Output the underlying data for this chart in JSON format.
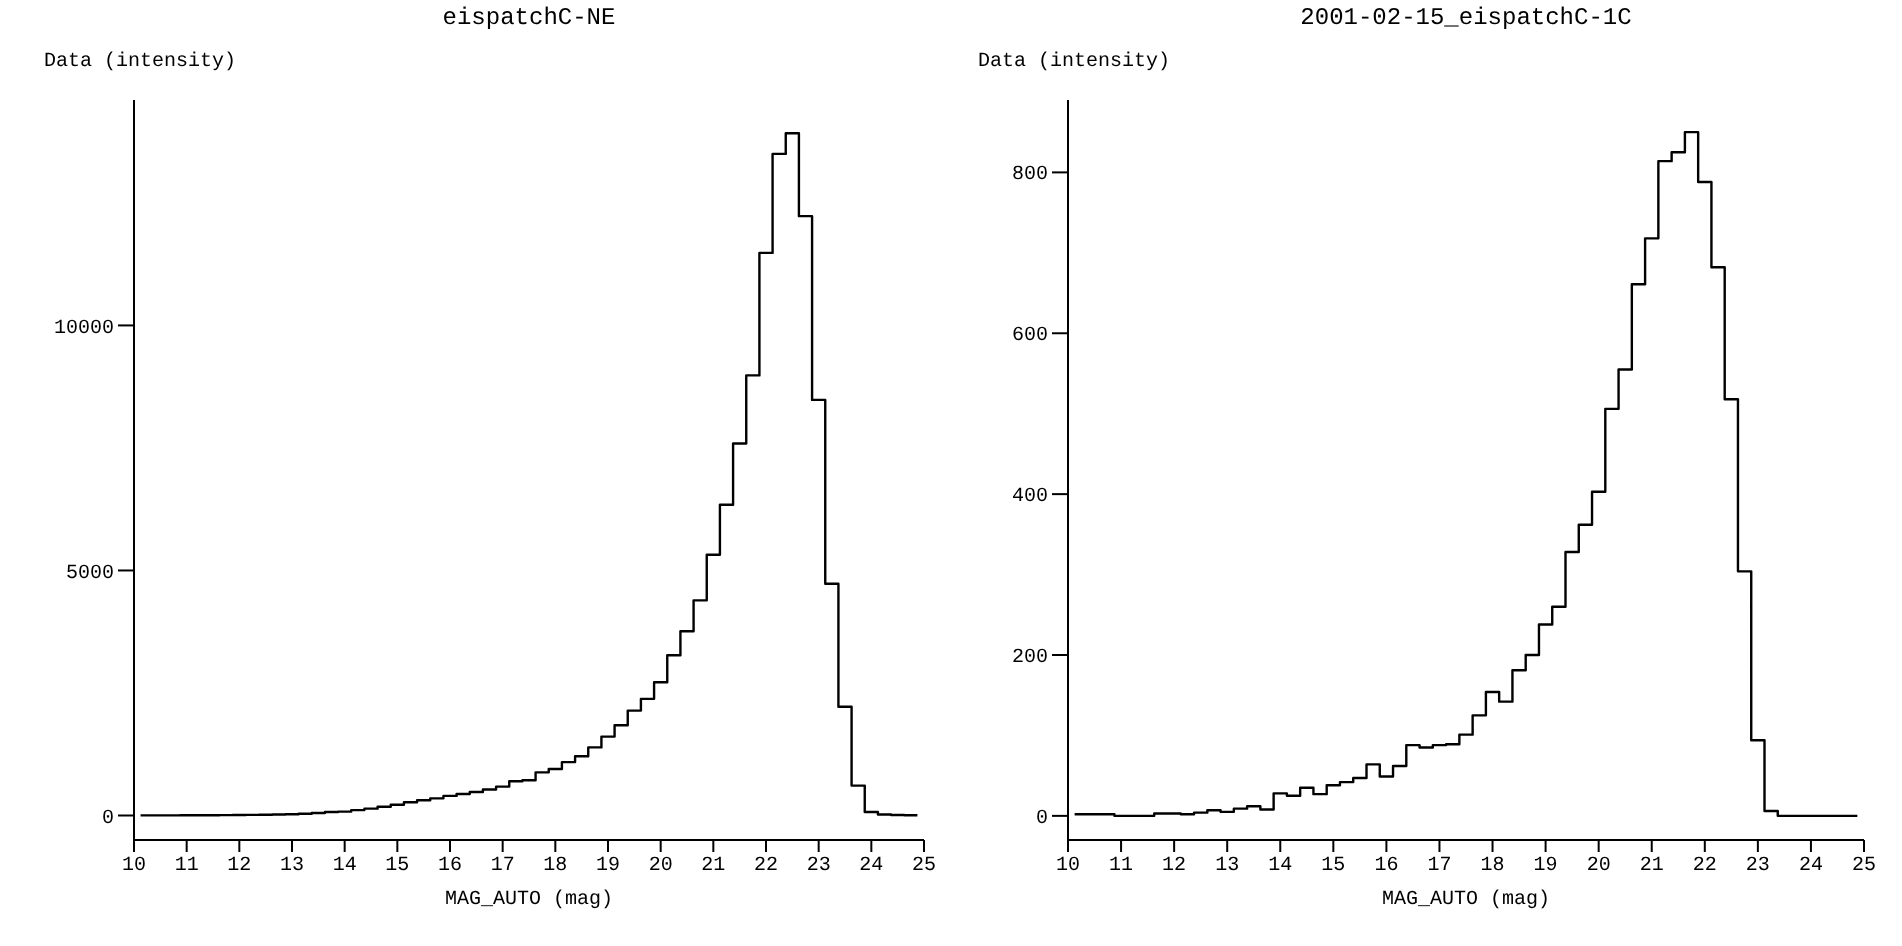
{
  "chart_data": [
    {
      "type": "histogram",
      "title": "eispatchC-NE",
      "xlabel": "MAG_AUTO (mag)",
      "ylabel": "Data (intensity)",
      "color": "#000000",
      "grid": false,
      "bins": [
        10.125,
        10.375,
        10.625,
        10.875,
        11.125,
        11.375,
        11.625,
        11.875,
        12.125,
        12.375,
        12.625,
        12.875,
        13.125,
        13.375,
        13.625,
        13.875,
        14.125,
        14.375,
        14.625,
        14.875,
        15.125,
        15.375,
        15.625,
        15.875,
        16.125,
        16.375,
        16.625,
        16.875,
        17.125,
        17.375,
        17.625,
        17.875,
        18.125,
        18.375,
        18.625,
        18.875,
        19.125,
        19.375,
        19.625,
        19.875,
        20.125,
        20.375,
        20.625,
        20.875,
        21.125,
        21.375,
        21.625,
        21.875,
        22.125,
        22.375,
        22.625,
        22.875,
        23.125,
        23.375,
        23.625,
        23.875,
        24.125,
        24.375,
        24.625,
        24.875
      ],
      "values": [
        2,
        2,
        3,
        4,
        5,
        6,
        8,
        10,
        12,
        15,
        20,
        25,
        35,
        50,
        70,
        80,
        110,
        140,
        180,
        220,
        270,
        310,
        350,
        400,
        440,
        480,
        530,
        590,
        700,
        720,
        880,
        950,
        1090,
        1210,
        1390,
        1610,
        1840,
        2140,
        2380,
        2720,
        3270,
        3760,
        4390,
        5320,
        6340,
        7590,
        8980,
        11480,
        13500,
        13920,
        12230,
        8480,
        4730,
        2220,
        610,
        70,
        20,
        10,
        5
      ],
      "xlim": [
        10,
        25
      ],
      "xticks": [
        10,
        11,
        12,
        13,
        14,
        15,
        16,
        17,
        18,
        19,
        20,
        21,
        22,
        23,
        24,
        25
      ],
      "ylim": [
        -500,
        14600
      ],
      "yticks": [
        0,
        5000,
        10000
      ]
    },
    {
      "type": "histogram",
      "title": "2001-02-15_eispatchC-1C",
      "xlabel": "MAG_AUTO (mag)",
      "ylabel": "Data (intensity)",
      "color": "#000000",
      "grid": false,
      "bins": [
        10.125,
        10.375,
        10.625,
        10.875,
        11.125,
        11.375,
        11.625,
        11.875,
        12.125,
        12.375,
        12.625,
        12.875,
        13.125,
        13.375,
        13.625,
        13.875,
        14.125,
        14.375,
        14.625,
        14.875,
        15.125,
        15.375,
        15.625,
        15.875,
        16.125,
        16.375,
        16.625,
        16.875,
        17.125,
        17.375,
        17.625,
        17.875,
        18.125,
        18.375,
        18.625,
        18.875,
        19.125,
        19.375,
        19.625,
        19.875,
        20.125,
        20.375,
        20.625,
        20.875,
        21.125,
        21.375,
        21.625,
        21.875,
        22.125,
        22.375,
        22.625,
        22.875,
        23.125,
        23.375,
        23.625,
        23.875,
        24.125,
        24.375,
        24.625,
        24.875
      ],
      "values": [
        2,
        2,
        2,
        0,
        0,
        0,
        3,
        3,
        2,
        4,
        7,
        5,
        9,
        12,
        8,
        28,
        25,
        35,
        27,
        38,
        42,
        47,
        64,
        49,
        62,
        88,
        85,
        88,
        89,
        101,
        125,
        154,
        142,
        181,
        200,
        238,
        260,
        328,
        362,
        403,
        506,
        555,
        661,
        718,
        814,
        825,
        850,
        788,
        682,
        518,
        304,
        94,
        6,
        0,
        0,
        0,
        0,
        0,
        0
      ],
      "xlim": [
        10,
        25
      ],
      "xticks": [
        10,
        11,
        12,
        13,
        14,
        15,
        16,
        17,
        18,
        19,
        20,
        21,
        22,
        23,
        24,
        25
      ],
      "ylim": [
        -30,
        890
      ],
      "yticks": [
        0,
        200,
        400,
        600,
        800
      ]
    }
  ]
}
